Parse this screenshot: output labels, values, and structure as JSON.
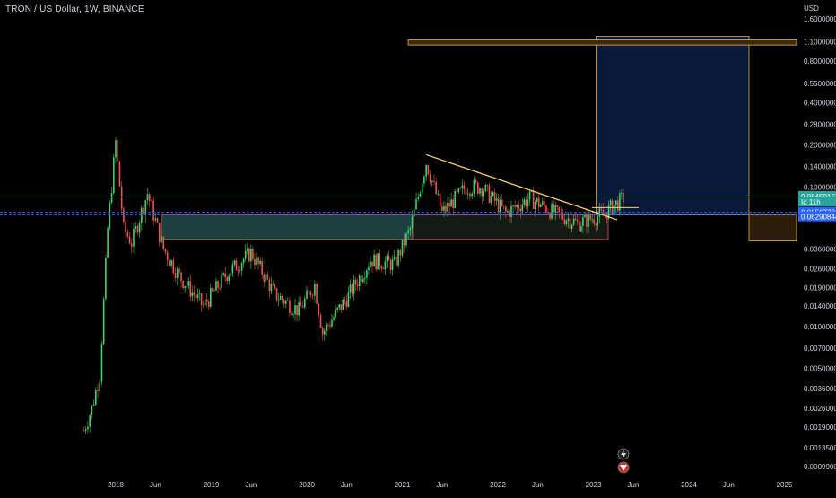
{
  "header": {
    "title": "TRON / US Dollar, 1W, BINANCE"
  },
  "price_axis": {
    "currency": "USD",
    "ticks": [
      "1.60000000",
      "1.10000000",
      "0.80000000",
      "0.55000000",
      "0.40000000",
      "0.28000000",
      "0.20000000",
      "0.14000000",
      "0.10000000",
      "0.03600000",
      "0.02600000",
      "0.01900000",
      "0.01400000",
      "0.01000000",
      "0.00700000",
      "0.00500000",
      "0.00360000",
      "0.00260000",
      "0.00190000",
      "0.00135000",
      "0.00099000"
    ]
  },
  "time_axis": {
    "ticks": [
      "2018",
      "Jun",
      "2019",
      "Jun",
      "2020",
      "Jun",
      "2021",
      "Jun",
      "2022",
      "Jun",
      "2023",
      "Jun",
      "2024",
      "Jun",
      "2025"
    ]
  },
  "price_labels": [
    {
      "value": "0.08450153",
      "color": "#26a69a"
    },
    {
      "value": "Id 11h",
      "color": "#26a69a"
    },
    {
      "value": "0.06567704",
      "color": "#2962ff"
    },
    {
      "value": "0.06290844",
      "color": "#2962ff"
    }
  ],
  "icons": [
    "lightning-icon",
    "tron-logo-icon"
  ],
  "colors": {
    "bull": "#26a69a",
    "bull_bright": "#43d36a",
    "bear": "#ef5350",
    "trendline": "#f5d36b",
    "box_border": "#f0b54a",
    "target_fill": "#0b1a3d",
    "zone_fill": "#1c3f3f"
  },
  "chart_data": {
    "type": "candlestick",
    "title": "TRON / US Dollar, 1W, BINANCE",
    "y_scale": "log",
    "ylim": [
      0.00099,
      1.6
    ],
    "xlim": [
      "2017-09",
      "2025-04"
    ],
    "series": [
      {
        "date": "2017-09",
        "close": 0.0018
      },
      {
        "date": "2017-10",
        "close": 0.0026
      },
      {
        "date": "2017-11",
        "close": 0.0045
      },
      {
        "date": "2017-12",
        "close": 0.05
      },
      {
        "date": "2018-01",
        "close": 0.21
      },
      {
        "date": "2018-02",
        "close": 0.05
      },
      {
        "date": "2018-03",
        "close": 0.04
      },
      {
        "date": "2018-05",
        "close": 0.09
      },
      {
        "date": "2018-07",
        "close": 0.036
      },
      {
        "date": "2018-09",
        "close": 0.023
      },
      {
        "date": "2018-12",
        "close": 0.014
      },
      {
        "date": "2019-03",
        "close": 0.024
      },
      {
        "date": "2019-06",
        "close": 0.034
      },
      {
        "date": "2019-09",
        "close": 0.017
      },
      {
        "date": "2019-12",
        "close": 0.013
      },
      {
        "date": "2020-02",
        "close": 0.02
      },
      {
        "date": "2020-03",
        "close": 0.009
      },
      {
        "date": "2020-06",
        "close": 0.016
      },
      {
        "date": "2020-09",
        "close": 0.03
      },
      {
        "date": "2020-12",
        "close": 0.028
      },
      {
        "date": "2021-02",
        "close": 0.05
      },
      {
        "date": "2021-04",
        "close": 0.15
      },
      {
        "date": "2021-06",
        "close": 0.065
      },
      {
        "date": "2021-09",
        "close": 0.1
      },
      {
        "date": "2021-11",
        "close": 0.1
      },
      {
        "date": "2022-02",
        "close": 0.065
      },
      {
        "date": "2022-05",
        "close": 0.083
      },
      {
        "date": "2022-08",
        "close": 0.066
      },
      {
        "date": "2022-11",
        "close": 0.055
      },
      {
        "date": "2023-02",
        "close": 0.063
      },
      {
        "date": "2023-05",
        "close": 0.085
      }
    ],
    "annotations": {
      "current_price": 0.08450153,
      "levels": [
        0.06567704,
        0.06290844
      ],
      "trendline": {
        "from": [
          "2021-04",
          0.17
        ],
        "to": [
          "2023-04",
          0.058
        ]
      },
      "long_position": {
        "entry": 0.063,
        "target": 1.2
      }
    }
  }
}
